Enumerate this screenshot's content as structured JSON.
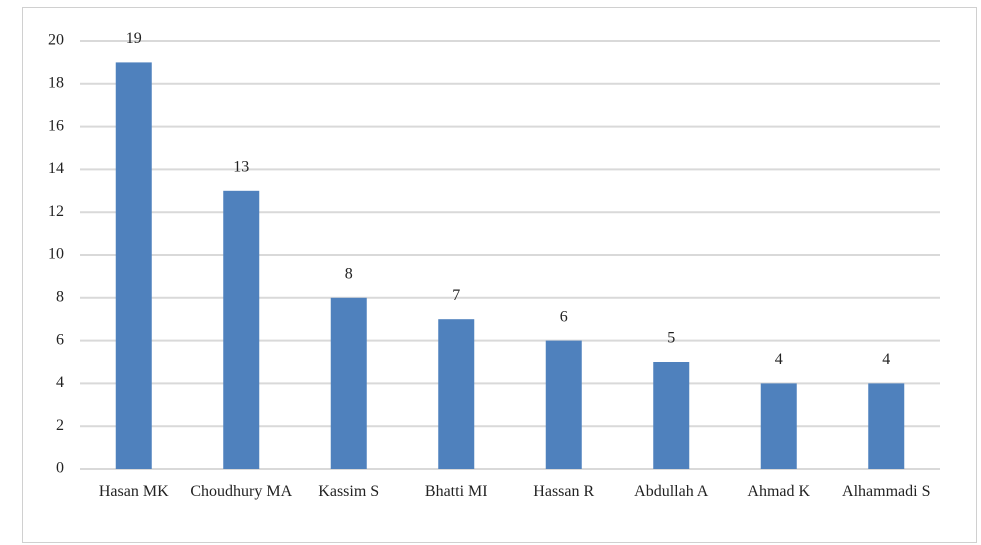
{
  "chart_data": {
    "type": "bar",
    "categories": [
      "Hasan MK",
      "Choudhury MA",
      "Kassim S",
      "Bhatti MI",
      "Hassan R",
      "Abdullah A",
      "Ahmad K",
      "Alhammadi S"
    ],
    "values": [
      19,
      13,
      8,
      7,
      6,
      5,
      4,
      4
    ],
    "color": "#4f81bd",
    "ylim": [
      0,
      20
    ],
    "yticks": [
      0,
      2,
      4,
      6,
      8,
      10,
      12,
      14,
      16,
      18,
      20
    ],
    "grid": true,
    "data_labels": true
  }
}
